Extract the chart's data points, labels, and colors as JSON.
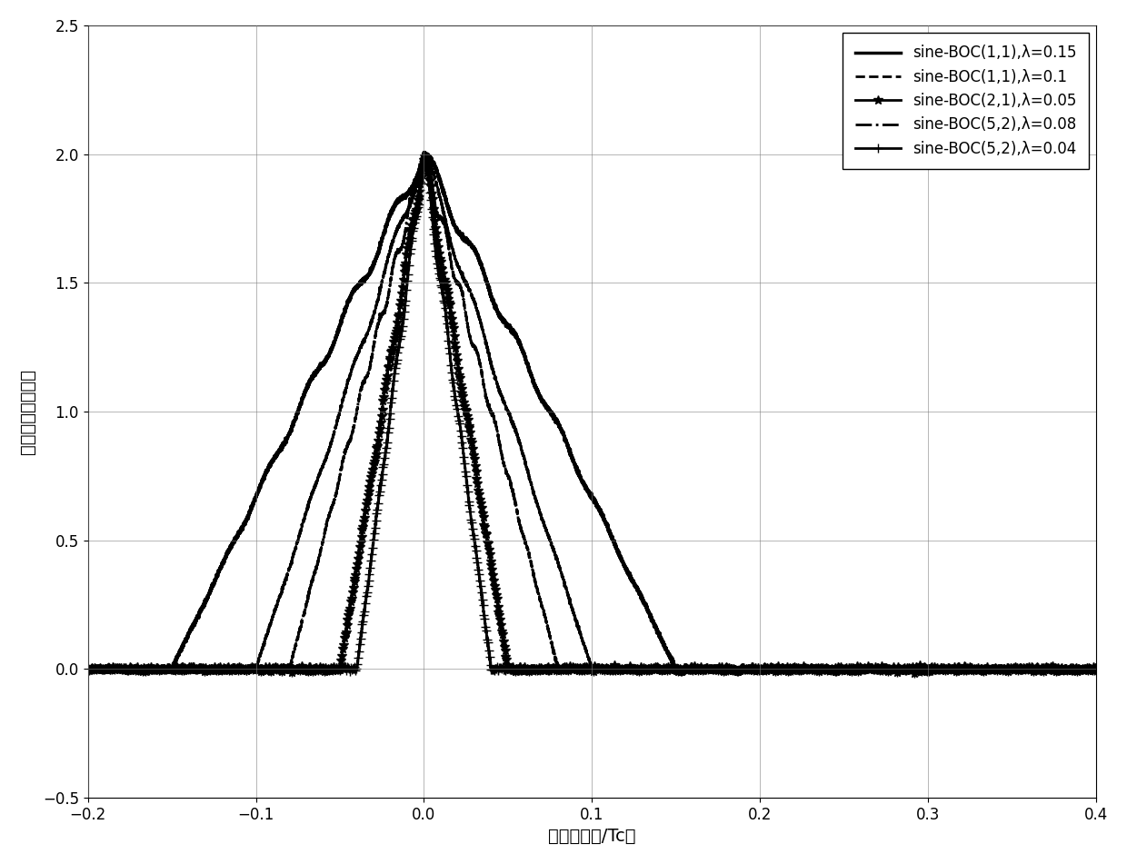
{
  "xlabel": "码片延远（/Tc）",
  "ylabel": "归一化相关函数值",
  "xlim": [
    -0.2,
    0.4
  ],
  "ylim": [
    -0.5,
    2.5
  ],
  "xticks": [
    -0.2,
    -0.1,
    0.0,
    0.1,
    0.2,
    0.3,
    0.4
  ],
  "yticks": [
    -0.5,
    0.0,
    0.5,
    1.0,
    1.5,
    2.0,
    2.5
  ],
  "curves": [
    {
      "label": "sine-BOC(1,1),λ=0.15",
      "linestyle": "-",
      "linewidth": 2.5,
      "marker": null,
      "markersize": 0,
      "markevery": 1,
      "boc_m": 1,
      "boc_n": 1,
      "lam": 0.15
    },
    {
      "label": "sine-BOC(1,1),λ=0.1",
      "linestyle": "--",
      "linewidth": 2.0,
      "marker": null,
      "markersize": 0,
      "markevery": 1,
      "boc_m": 1,
      "boc_n": 1,
      "lam": 0.1
    },
    {
      "label": "sine-BOC(2,1),λ=0.05",
      "linestyle": "-",
      "linewidth": 2.0,
      "marker": "*",
      "markersize": 7,
      "markevery": 8,
      "boc_m": 2,
      "boc_n": 1,
      "lam": 0.05
    },
    {
      "label": "sine-BOC(5,2),λ=0.08",
      "linestyle": "-.",
      "linewidth": 2.0,
      "marker": null,
      "markersize": 0,
      "markevery": 1,
      "boc_m": 5,
      "boc_n": 2,
      "lam": 0.08
    },
    {
      "label": "sine-BOC(5,2),λ=0.04",
      "linestyle": "-",
      "linewidth": 2.0,
      "marker": "+",
      "markersize": 7,
      "markevery": 8,
      "boc_m": 5,
      "boc_n": 2,
      "lam": 0.04
    }
  ],
  "noise_amp": 0.015,
  "noise_seed": 42,
  "legend_fontsize": 12,
  "axis_label_fontsize": 14,
  "tick_fontsize": 12
}
